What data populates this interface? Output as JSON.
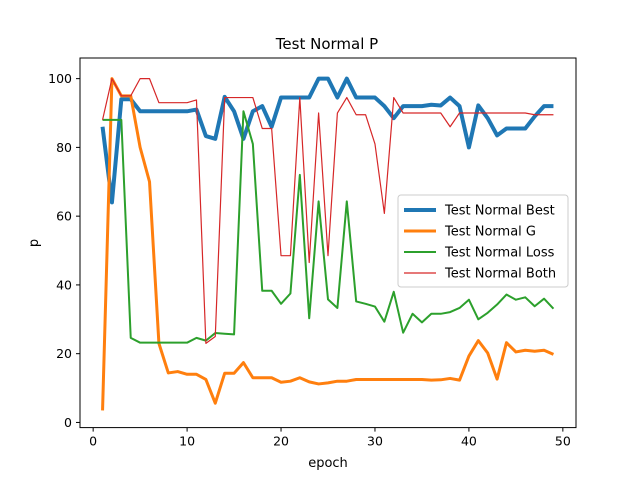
{
  "chart_data": {
    "type": "line",
    "title": "Test Normal P",
    "xlabel": "epoch",
    "ylabel": "p",
    "xlim": [
      -1.4,
      51.4
    ],
    "ylim": [
      -1.5,
      106
    ],
    "xticks": [
      0,
      10,
      20,
      30,
      40,
      50
    ],
    "yticks": [
      0,
      20,
      40,
      60,
      80,
      100
    ],
    "grid": false,
    "legend_position": "center-right",
    "x": [
      1,
      2,
      3,
      4,
      5,
      6,
      7,
      8,
      9,
      10,
      11,
      12,
      13,
      14,
      15,
      16,
      17,
      18,
      19,
      20,
      21,
      22,
      23,
      24,
      25,
      26,
      27,
      28,
      29,
      30,
      31,
      32,
      33,
      34,
      35,
      36,
      37,
      38,
      39,
      40,
      41,
      42,
      43,
      44,
      45,
      46,
      47,
      48,
      49
    ],
    "series": [
      {
        "name": "Test Normal Best",
        "color": "#1f77b4",
        "width": 4,
        "values": [
          86,
          64,
          94,
          94,
          90.5,
          90.5,
          90.5,
          90.5,
          90.5,
          90.5,
          91,
          83.3,
          82.5,
          94.7,
          90.5,
          82.5,
          90.5,
          92,
          86,
          94.5,
          94.5,
          94.5,
          94.5,
          100,
          100,
          94.5,
          100,
          94.5,
          94.5,
          94.5,
          92,
          88.5,
          92,
          92,
          92,
          92.4,
          92.2,
          94.5,
          92,
          80,
          92.2,
          88.5,
          83.5,
          85.5,
          85.5,
          85.5,
          89,
          92,
          92
        ]
      },
      {
        "name": "Test Normal G",
        "color": "#ff7f0e",
        "width": 3,
        "values": [
          3.5,
          100,
          95,
          95,
          80,
          70,
          23,
          14.4,
          14.8,
          14,
          14,
          12.5,
          5.6,
          14.3,
          14.3,
          17.4,
          13,
          13,
          13,
          11.7,
          12,
          13,
          11.8,
          11.2,
          11.5,
          12,
          12,
          12.5,
          12.5,
          12.5,
          12.5,
          12.5,
          12.5,
          12.5,
          12.5,
          12.3,
          12.4,
          12.8,
          12.3,
          19.3,
          23.8,
          20.2,
          12.6,
          23.2,
          20.5,
          21,
          20.7,
          21,
          19.8
        ]
      },
      {
        "name": "Test Normal Loss",
        "color": "#2ca02c",
        "width": 2,
        "values": [
          88,
          88,
          88,
          24.6,
          23.2,
          23.2,
          23.2,
          23.2,
          23.2,
          23.2,
          24.6,
          23.8,
          26,
          25.8,
          25.6,
          90.5,
          81,
          38.3,
          38.3,
          34.5,
          37.5,
          72,
          30.3,
          64.3,
          35.8,
          33.3,
          64.3,
          35.2,
          34.5,
          33.7,
          29.3,
          38,
          26.1,
          31.6,
          29.1,
          31.6,
          31.6,
          32.1,
          33.3,
          35.7,
          30,
          31.9,
          34.3,
          37.2,
          35.7,
          36.4,
          33.8,
          36,
          33.1
        ]
      },
      {
        "name": "Test Normal Both",
        "color": "#d62728",
        "width": 1.2,
        "values": [
          88,
          100,
          95,
          95,
          100,
          100,
          93,
          93,
          93,
          93,
          93.8,
          23,
          25,
          94.5,
          94.5,
          94.5,
          94.5,
          85.5,
          85.5,
          48.5,
          48.5,
          94.5,
          46.5,
          90,
          48.5,
          90,
          94.5,
          89.5,
          89.5,
          81,
          60.8,
          94.5,
          90,
          90,
          90,
          90,
          90,
          86,
          90,
          90,
          90,
          90,
          90,
          90,
          90,
          90,
          89.5,
          89.5,
          89.5
        ]
      }
    ]
  }
}
